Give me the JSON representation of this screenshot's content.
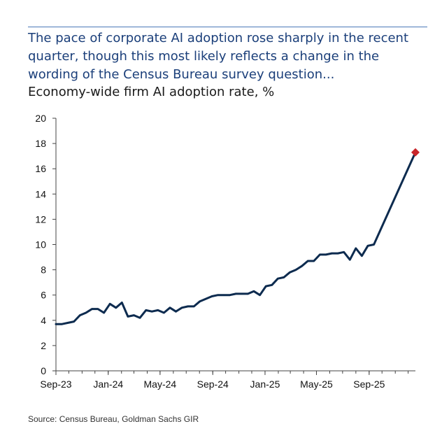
{
  "headline": "The pace of corporate AI adoption rose sharply in the recent quarter, though this most likely reflects a change in the wording of the Census Bureau survey question...",
  "subtitle": "Economy-wide firm AI adoption rate, %",
  "source": "Source: Census Bureau, Goldman Sachs GIR",
  "colors": {
    "line": "#0d2b4f",
    "marker": "#c8262b",
    "headline": "#1b3f7a",
    "rule": "#4a78b8"
  },
  "chart_data": {
    "type": "line",
    "title": "Economy-wide firm AI adoption rate, %",
    "xlabel": "",
    "ylabel": "",
    "x_range": [
      "2023-09-01",
      "2025-12-18"
    ],
    "ylim": [
      0,
      20
    ],
    "y_ticks": [
      0,
      2,
      4,
      6,
      8,
      10,
      12,
      14,
      16,
      18,
      20
    ],
    "x_ticks": [
      {
        "label": "Sep-23",
        "date": "2023-09-01"
      },
      {
        "label": "Jan-24",
        "date": "2024-01-01"
      },
      {
        "label": "May-24",
        "date": "2024-05-01"
      },
      {
        "label": "Sep-24",
        "date": "2024-09-01"
      },
      {
        "label": "Jan-25",
        "date": "2025-01-01"
      },
      {
        "label": "May-25",
        "date": "2025-05-01"
      },
      {
        "label": "Sep-25",
        "date": "2025-09-01"
      }
    ],
    "grid": false,
    "legend": "none",
    "series": [
      {
        "points": [
          [
            "2023-09-01",
            3.7
          ],
          [
            "2023-09-15",
            3.7
          ],
          [
            "2023-09-29",
            3.8
          ],
          [
            "2023-10-13",
            3.9
          ],
          [
            "2023-10-27",
            4.4
          ],
          [
            "2023-11-10",
            4.6
          ],
          [
            "2023-11-24",
            4.9
          ],
          [
            "2023-12-08",
            4.9
          ],
          [
            "2023-12-22",
            4.6
          ],
          [
            "2024-01-05",
            5.3
          ],
          [
            "2024-01-19",
            5.0
          ],
          [
            "2024-02-02",
            5.4
          ],
          [
            "2024-02-16",
            4.3
          ],
          [
            "2024-03-01",
            4.4
          ],
          [
            "2024-03-15",
            4.2
          ],
          [
            "2024-03-29",
            4.8
          ],
          [
            "2024-04-12",
            4.7
          ],
          [
            "2024-04-26",
            4.8
          ],
          [
            "2024-05-10",
            4.6
          ],
          [
            "2024-05-24",
            5.0
          ],
          [
            "2024-06-07",
            4.7
          ],
          [
            "2024-06-21",
            5.0
          ],
          [
            "2024-07-05",
            5.1
          ],
          [
            "2024-07-19",
            5.1
          ],
          [
            "2024-08-02",
            5.5
          ],
          [
            "2024-08-16",
            5.7
          ],
          [
            "2024-08-30",
            5.9
          ],
          [
            "2024-09-13",
            6.0
          ],
          [
            "2024-09-27",
            6.0
          ],
          [
            "2024-10-11",
            6.0
          ],
          [
            "2024-10-25",
            6.1
          ],
          [
            "2024-11-08",
            6.1
          ],
          [
            "2024-11-22",
            6.1
          ],
          [
            "2024-12-06",
            6.3
          ],
          [
            "2024-12-20",
            6.0
          ],
          [
            "2025-01-03",
            6.7
          ],
          [
            "2025-01-17",
            6.8
          ],
          [
            "2025-01-31",
            7.3
          ],
          [
            "2025-02-14",
            7.4
          ],
          [
            "2025-02-28",
            7.8
          ],
          [
            "2025-03-14",
            8.0
          ],
          [
            "2025-03-28",
            8.3
          ],
          [
            "2025-04-11",
            8.7
          ],
          [
            "2025-04-25",
            8.7
          ],
          [
            "2025-05-09",
            9.2
          ],
          [
            "2025-05-23",
            9.2
          ],
          [
            "2025-06-06",
            9.3
          ],
          [
            "2025-06-20",
            9.3
          ],
          [
            "2025-07-04",
            9.4
          ],
          [
            "2025-07-18",
            8.8
          ],
          [
            "2025-08-01",
            9.7
          ],
          [
            "2025-08-15",
            9.1
          ],
          [
            "2025-08-29",
            9.9
          ],
          [
            "2025-09-12",
            10.0
          ],
          [
            "2025-12-18",
            17.3
          ]
        ],
        "highlight": {
          "date": "2025-12-18",
          "value": 17.3,
          "marker": "diamond"
        }
      }
    ]
  }
}
